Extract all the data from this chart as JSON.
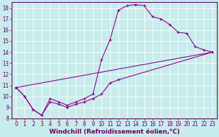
{
  "xlabel": "Windchill (Refroidissement éolien,°C)",
  "background_color": "#c8ecec",
  "grid_color": "#b0d8d8",
  "line_color": "#880088",
  "xlim": [
    -0.5,
    23.5
  ],
  "ylim": [
    8,
    18.5
  ],
  "xticks": [
    0,
    1,
    2,
    3,
    4,
    5,
    6,
    7,
    8,
    9,
    10,
    11,
    12,
    13,
    14,
    15,
    16,
    17,
    18,
    19,
    20,
    21,
    22,
    23
  ],
  "yticks": [
    8,
    9,
    10,
    11,
    12,
    13,
    14,
    15,
    16,
    17,
    18
  ],
  "series1_x": [
    0,
    1,
    2,
    3,
    4,
    5,
    6,
    7,
    8,
    9,
    10,
    11,
    12,
    13,
    14,
    15,
    16,
    17,
    18,
    19,
    20,
    21,
    22,
    23
  ],
  "series1_y": [
    10.8,
    10.0,
    8.8,
    8.3,
    9.8,
    9.5,
    9.2,
    9.5,
    9.8,
    10.2,
    13.3,
    15.1,
    17.8,
    18.2,
    18.3,
    18.2,
    17.2,
    17.0,
    16.5,
    15.8,
    15.7,
    14.5,
    14.2,
    14.0
  ],
  "series2_x": [
    0,
    23
  ],
  "series2_y": [
    10.8,
    14.0
  ],
  "series3_x": [
    0,
    1,
    2,
    3,
    4,
    5,
    6,
    7,
    8,
    9,
    10,
    11,
    12,
    23
  ],
  "series3_y": [
    10.8,
    10.0,
    8.8,
    8.3,
    9.5,
    9.3,
    9.0,
    9.3,
    9.5,
    9.8,
    10.2,
    11.2,
    11.5,
    14.0
  ],
  "figsize": [
    3.2,
    2.0
  ],
  "dpi": 100,
  "font_color": "#660066",
  "tick_fontsize": 5.5,
  "label_fontsize": 6.5
}
